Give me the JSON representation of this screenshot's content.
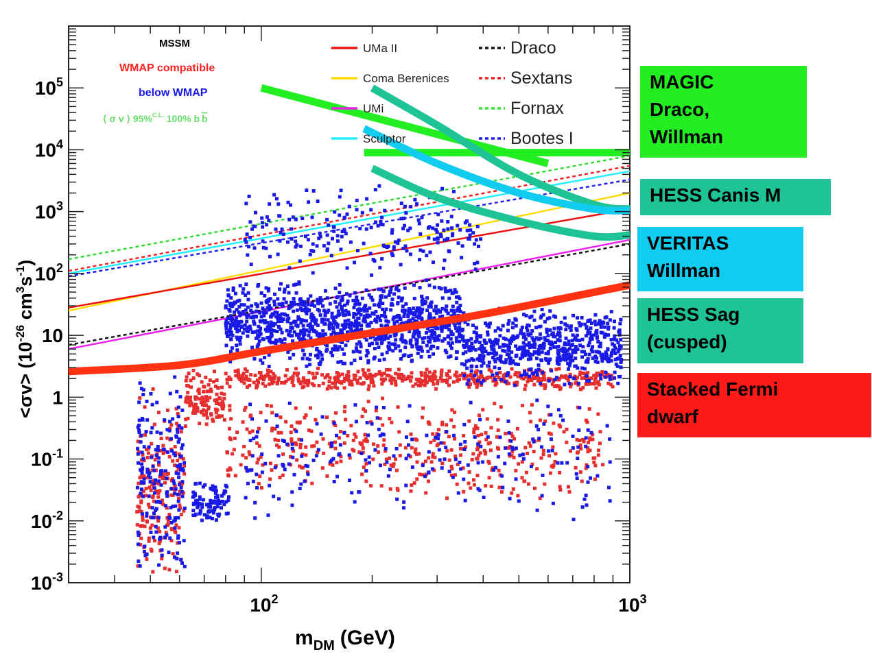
{
  "chart_data": {
    "type": "scatter",
    "xscale": "log",
    "yscale": "log",
    "xlim": [
      30,
      1000
    ],
    "ylim": [
      0.001,
      1000000
    ],
    "xlabel_main": "m",
    "xlabel_sub": "DM",
    "xlabel_unit": "(GeV)",
    "ylabel_text": "<σv> (10",
    "ylabel_exp1": "-26",
    "ylabel_mid": " cm",
    "ylabel_exp2": "3",
    "ylabel_s": "s",
    "ylabel_exp3": "-1",
    "ylabel_end": ")",
    "xticks": [
      {
        "value": 100,
        "base": "10",
        "exp": "2"
      },
      {
        "value": 1000,
        "base": "10",
        "exp": "3"
      }
    ],
    "yticks": [
      {
        "value": 0.001,
        "base": "10",
        "exp": "-3"
      },
      {
        "value": 0.01,
        "base": "10",
        "exp": "-2"
      },
      {
        "value": 0.1,
        "base": "10",
        "exp": "-1"
      },
      {
        "value": 1,
        "base": "1",
        "exp": ""
      },
      {
        "value": 10,
        "base": "10",
        "exp": ""
      },
      {
        "value": 100,
        "base": "10",
        "exp": "2"
      },
      {
        "value": 1000,
        "base": "10",
        "exp": "3"
      },
      {
        "value": 10000,
        "base": "10",
        "exp": "4"
      },
      {
        "value": 100000,
        "base": "10",
        "exp": "5"
      }
    ],
    "annotations": {
      "model": "MSSM",
      "wmap_compatible": "WMAP compatible",
      "below_wmap": "below WMAP",
      "sigma_pre": "⟨ σ v ⟩ 95%",
      "sigma_sup": "C.L.",
      "sigma_post": " 100% b",
      "sigma_bbar": "b",
      "colors": {
        "model": "#000000",
        "wmap": "#ff2222",
        "below": "#1a1aee",
        "sigma": "#66dd66"
      }
    },
    "legend": [
      {
        "name": "UMa II",
        "color": "#ee1111",
        "style": "solid"
      },
      {
        "name": "Coma Berenices",
        "color": "#ffdd00",
        "style": "solid"
      },
      {
        "name": "UMi",
        "color": "#ee22ee",
        "style": "solid"
      },
      {
        "name": "Sculptor",
        "color": "#22eeff",
        "style": "solid"
      },
      {
        "name": "Draco",
        "color": "#111111",
        "style": "dashed"
      },
      {
        "name": "Sextans",
        "color": "#ee2222",
        "style": "dashed"
      },
      {
        "name": "Fornax",
        "color": "#33dd33",
        "style": "dashed"
      },
      {
        "name": "Bootes I",
        "color": "#2222ee",
        "style": "dashed"
      }
    ],
    "dwarf_limits": [
      {
        "name": "Fornax",
        "color": "#33dd33",
        "style": "dashed",
        "x": [
          30,
          1000
        ],
        "y": [
          170,
          8000
        ]
      },
      {
        "name": "Sculptor",
        "color": "#22eeff",
        "style": "solid",
        "x": [
          30,
          1000
        ],
        "y": [
          100,
          4500
        ]
      },
      {
        "name": "Sextans",
        "color": "#ee2222",
        "style": "dashed",
        "x": [
          30,
          1000
        ],
        "y": [
          110,
          5500
        ]
      },
      {
        "name": "Bootes I",
        "color": "#2222ee",
        "style": "dashed",
        "x": [
          30,
          1000
        ],
        "y": [
          90,
          3300
        ]
      },
      {
        "name": "Coma Berenices",
        "color": "#ffdd00",
        "style": "solid",
        "x": [
          30,
          1000
        ],
        "y": [
          25,
          2000
        ]
      },
      {
        "name": "UMa II",
        "color": "#ee1111",
        "style": "solid",
        "x": [
          30,
          1000
        ],
        "y": [
          28,
          1100
        ]
      },
      {
        "name": "UMi",
        "color": "#ee22ee",
        "style": "solid",
        "x": [
          30,
          1000
        ],
        "y": [
          6,
          350
        ]
      },
      {
        "name": "Draco",
        "color": "#111111",
        "style": "dashed",
        "x": [
          30,
          1000
        ],
        "y": [
          7,
          300
        ]
      }
    ],
    "overlay_limits": [
      {
        "name": "MAGIC Draco, Willman (sloped)",
        "color": "#22ee22",
        "x": [
          100,
          600
        ],
        "y": [
          100000,
          6000
        ]
      },
      {
        "name": "MAGIC Draco, Willman (flat)",
        "color": "#22ee22",
        "x": [
          190,
          1000
        ],
        "y": [
          9000,
          9000
        ]
      },
      {
        "name": "HESS Canis M",
        "color": "#1ec495",
        "x": [
          200,
          300,
          500,
          800,
          1000
        ],
        "y": [
          100000,
          25000,
          4000,
          1300,
          1100
        ]
      },
      {
        "name": "VERITAS Willman",
        "color": "#11ccee",
        "x": [
          190,
          300,
          500,
          800,
          1000
        ],
        "y": [
          22000,
          6000,
          2000,
          1100,
          1050
        ]
      },
      {
        "name": "HESS Sag (cusped)",
        "color": "#1ec495",
        "x": [
          200,
          300,
          500,
          800,
          1000
        ],
        "y": [
          5000,
          1700,
          700,
          400,
          420
        ]
      },
      {
        "name": "Stacked Fermi dwarf",
        "color": "#ff3311",
        "x": [
          30,
          60,
          100,
          200,
          400,
          1000
        ],
        "y": [
          2.6,
          3.3,
          5.5,
          11,
          22,
          65
        ]
      }
    ],
    "scatter_series": [
      {
        "name": "WMAP compatible",
        "color": "#e62e2e",
        "regions": [
          {
            "desc": "band",
            "xmin": 80,
            "xmax": 900,
            "ymin": 1.3,
            "ymax": 3.0,
            "count": 500
          },
          {
            "desc": "low cloud",
            "xmin": 200,
            "xmax": 850,
            "ymin": 0.02,
            "ymax": 1.0,
            "count": 260
          },
          {
            "desc": "mid cloud",
            "xmin": 80,
            "xmax": 200,
            "ymin": 0.03,
            "ymax": 1.0,
            "count": 160
          },
          {
            "desc": "low-mass spike",
            "xmin": 46,
            "xmax": 62,
            "ymin": 0.001,
            "ymax": 1.5,
            "count": 190
          },
          {
            "desc": "low-mass column",
            "xmin": 62,
            "xmax": 80,
            "ymin": 0.3,
            "ymax": 3.0,
            "count": 120
          }
        ]
      },
      {
        "name": "below WMAP",
        "color": "#1a1ae6",
        "regions": [
          {
            "desc": "main cloud",
            "xmin": 80,
            "xmax": 350,
            "ymin": 3,
            "ymax": 80,
            "count": 1100
          },
          {
            "desc": "upper spread",
            "xmin": 90,
            "xmax": 400,
            "ymin": 80,
            "ymax": 3000,
            "count": 220
          },
          {
            "desc": "diagonal band",
            "xmin": 350,
            "xmax": 950,
            "ymin": 1.5,
            "ymax": 30,
            "count": 600
          },
          {
            "desc": "low cloud",
            "xmin": 90,
            "xmax": 900,
            "ymin": 0.01,
            "ymax": 1.0,
            "count": 230
          },
          {
            "desc": "low-mass spike",
            "xmin": 46,
            "xmax": 62,
            "ymin": 0.001,
            "ymax": 3.0,
            "count": 190
          },
          {
            "desc": "low-mass tail",
            "xmin": 65,
            "xmax": 82,
            "ymin": 0.008,
            "ymax": 0.05,
            "count": 90
          }
        ]
      }
    ]
  },
  "side_labels": [
    {
      "id": "magic",
      "text": "MAGIC\nDraco,\nWillman",
      "color": "#22ee22"
    },
    {
      "id": "hess-canis",
      "text": "HESS Canis M",
      "color": "#1ec495"
    },
    {
      "id": "veritas",
      "text": "VERITAS\nWillman",
      "color": "#11ccee"
    },
    {
      "id": "hess-sag",
      "text": "HESS Sag\n(cusped)",
      "color": "#1ec495"
    },
    {
      "id": "fermi",
      "text": "Stacked Fermi\ndwarf",
      "color": "#ff1a1a"
    }
  ]
}
